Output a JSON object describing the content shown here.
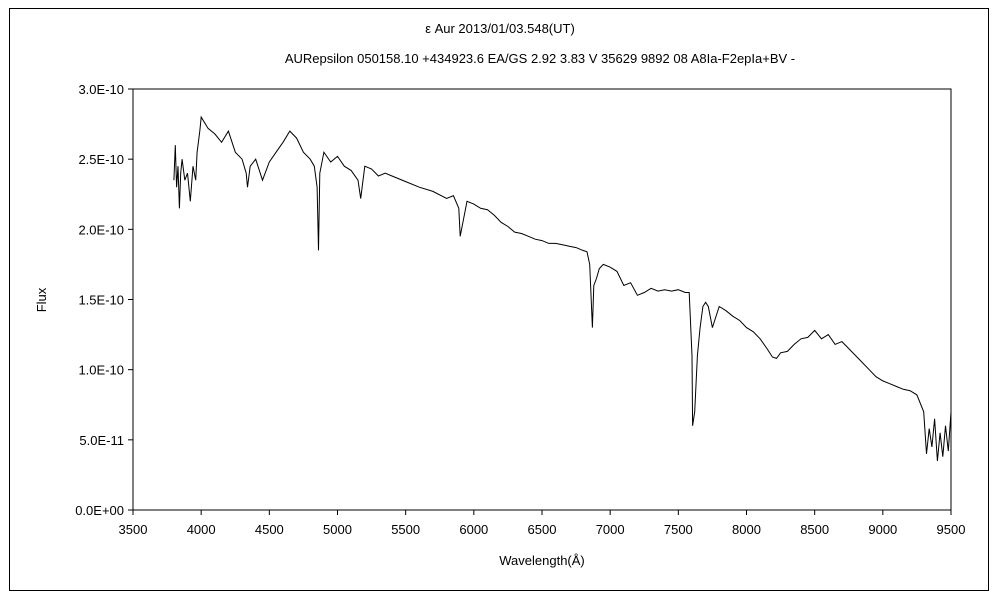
{
  "chart_data": {
    "type": "line",
    "title": "ε Aur 2013/01/03.548(UT)",
    "subtitle": "AURepsilon 050158.10 +434923.6 EA/GS 2.92 3.83 V 35629 9892 08 A8Ia-F2epIa+BV -",
    "xlabel": "Wavelength(Å)",
    "ylabel": "Flux",
    "xlim": [
      3500,
      9500
    ],
    "ylim": [
      0,
      3e-10
    ],
    "x_ticks": [
      "3500",
      "4000",
      "4500",
      "5000",
      "5500",
      "6000",
      "6500",
      "7000",
      "7500",
      "8000",
      "8500",
      "9000",
      "9500"
    ],
    "y_ticks": [
      "0.0E+00",
      "5.0E-11",
      "1.0E-10",
      "1.5E-10",
      "2.0E-10",
      "2.5E-10",
      "3.0E-10"
    ],
    "grid": false,
    "legend": "none",
    "series": [
      {
        "color": "#000000",
        "x": [
          3800,
          3810,
          3820,
          3830,
          3840,
          3850,
          3860,
          3880,
          3900,
          3920,
          3940,
          3960,
          3970,
          3990,
          4000,
          4050,
          4100,
          4150,
          4200,
          4250,
          4300,
          4330,
          4340,
          4360,
          4400,
          4450,
          4500,
          4550,
          4600,
          4650,
          4700,
          4750,
          4800,
          4830,
          4850,
          4861,
          4870,
          4900,
          4950,
          5000,
          5050,
          5100,
          5150,
          5170,
          5200,
          5250,
          5300,
          5350,
          5400,
          5500,
          5600,
          5700,
          5800,
          5850,
          5890,
          5900,
          5950,
          6000,
          6050,
          6100,
          6150,
          6200,
          6250,
          6300,
          6350,
          6400,
          6450,
          6500,
          6550,
          6600,
          6650,
          6700,
          6750,
          6800,
          6830,
          6850,
          6870,
          6880,
          6900,
          6920,
          6950,
          7000,
          7050,
          7100,
          7150,
          7200,
          7250,
          7300,
          7350,
          7400,
          7450,
          7500,
          7550,
          7580,
          7600,
          7605,
          7620,
          7640,
          7660,
          7680,
          7700,
          7720,
          7750,
          7800,
          7850,
          7900,
          7950,
          8000,
          8050,
          8100,
          8150,
          8190,
          8220,
          8250,
          8300,
          8350,
          8400,
          8450,
          8500,
          8550,
          8600,
          8650,
          8700,
          8750,
          8800,
          8850,
          8900,
          8950,
          9000,
          9050,
          9100,
          9150,
          9200,
          9250,
          9300,
          9320,
          9340,
          9360,
          9380,
          9400,
          9420,
          9440,
          9460,
          9480,
          9500
        ],
        "y": [
          2.35e-10,
          2.6e-10,
          2.3e-10,
          2.45e-10,
          2.15e-10,
          2.4e-10,
          2.5e-10,
          2.35e-10,
          2.4e-10,
          2.2e-10,
          2.45e-10,
          2.35e-10,
          2.55e-10,
          2.7e-10,
          2.8e-10,
          2.72e-10,
          2.68e-10,
          2.62e-10,
          2.7e-10,
          2.55e-10,
          2.5e-10,
          2.4e-10,
          2.3e-10,
          2.45e-10,
          2.5e-10,
          2.35e-10,
          2.48e-10,
          2.55e-10,
          2.62e-10,
          2.7e-10,
          2.65e-10,
          2.55e-10,
          2.5e-10,
          2.45e-10,
          2.3e-10,
          1.85e-10,
          2.4e-10,
          2.55e-10,
          2.48e-10,
          2.52e-10,
          2.45e-10,
          2.42e-10,
          2.35e-10,
          2.22e-10,
          2.45e-10,
          2.43e-10,
          2.38e-10,
          2.4e-10,
          2.38e-10,
          2.34e-10,
          2.3e-10,
          2.27e-10,
          2.22e-10,
          2.24e-10,
          2.15e-10,
          1.95e-10,
          2.2e-10,
          2.18e-10,
          2.15e-10,
          2.14e-10,
          2.1e-10,
          2.05e-10,
          2.02e-10,
          1.98e-10,
          1.97e-10,
          1.95e-10,
          1.93e-10,
          1.92e-10,
          1.9e-10,
          1.9e-10,
          1.89e-10,
          1.88e-10,
          1.87e-10,
          1.85e-10,
          1.84e-10,
          1.75e-10,
          1.3e-10,
          1.6e-10,
          1.65e-10,
          1.72e-10,
          1.75e-10,
          1.73e-10,
          1.7e-10,
          1.6e-10,
          1.62e-10,
          1.53e-10,
          1.55e-10,
          1.58e-10,
          1.56e-10,
          1.57e-10,
          1.56e-10,
          1.57e-10,
          1.55e-10,
          1.55e-10,
          1.1e-10,
          6e-11,
          7e-11,
          1.1e-10,
          1.3e-10,
          1.45e-10,
          1.48e-10,
          1.45e-10,
          1.3e-10,
          1.45e-10,
          1.42e-10,
          1.38e-10,
          1.35e-10,
          1.3e-10,
          1.27e-10,
          1.22e-10,
          1.15e-10,
          1.09e-10,
          1.08e-10,
          1.12e-10,
          1.13e-10,
          1.18e-10,
          1.22e-10,
          1.23e-10,
          1.28e-10,
          1.22e-10,
          1.25e-10,
          1.18e-10,
          1.2e-10,
          1.15e-10,
          1.1e-10,
          1.05e-10,
          1e-10,
          9.5e-11,
          9.2e-11,
          9e-11,
          8.8e-11,
          8.6e-11,
          8.5e-11,
          8.2e-11,
          7e-11,
          4e-11,
          5.8e-11,
          4.5e-11,
          6.5e-11,
          3.5e-11,
          5.5e-11,
          3.8e-11,
          6e-11,
          4.2e-11,
          7e-11
        ]
      }
    ]
  }
}
